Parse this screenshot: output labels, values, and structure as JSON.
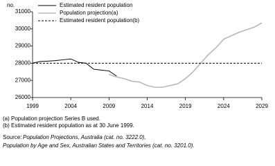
{
  "chart_data": {
    "type": "line",
    "y_label": "no.",
    "xlim": [
      1999,
      2029
    ],
    "xticks": [
      1999,
      2004,
      2009,
      2014,
      2019,
      2024,
      2029
    ],
    "ylim": [
      26000,
      31000
    ],
    "yticks": [
      26000,
      27000,
      28000,
      29000,
      30000,
      31000
    ],
    "legend": "top-left",
    "series": [
      {
        "name": "Estimated resident population",
        "color": "#000000",
        "line_style": "solid",
        "x": [
          1999,
          2000,
          2001,
          2002,
          2003,
          2004,
          2005,
          2006,
          2007,
          2008,
          2009,
          2010
        ],
        "values": [
          28000,
          28100,
          28120,
          28150,
          28200,
          28250,
          28050,
          28000,
          27650,
          27600,
          27550,
          27250
        ]
      },
      {
        "name": "Population projection(a)",
        "color": "#b8b8b8",
        "line_style": "solid",
        "x": [
          2009,
          2010,
          2011,
          2012,
          2013,
          2014,
          2015,
          2016,
          2017,
          2018,
          2019,
          2020,
          2021,
          2022,
          2023,
          2024,
          2025,
          2026,
          2027,
          2028,
          2029
        ],
        "values": [
          27350,
          27200,
          27100,
          26950,
          26900,
          26700,
          26600,
          26600,
          26700,
          26800,
          27100,
          27500,
          28000,
          28500,
          28900,
          29400,
          29600,
          29800,
          29950,
          30100,
          30350
        ]
      },
      {
        "name": "Estimated resident population(b)",
        "color": "#000000",
        "line_style": "dashed",
        "x": [
          1999,
          2029
        ],
        "values": [
          28000,
          28000
        ]
      }
    ],
    "notes": [
      "(a) Population projection Series B used.",
      "(b) Estimated resident population as at 30 June 1999."
    ],
    "source": {
      "label": "Source:",
      "lines": [
        "Population Projections, Australia (cat. no. 3222.0),",
        "Population by Age and Sex, Australian States and Territories (cat. no. 3201.0)."
      ]
    }
  }
}
